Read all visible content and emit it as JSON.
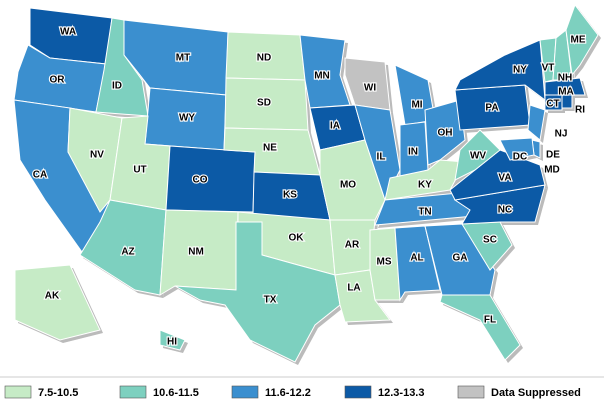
{
  "legend": [
    {
      "label": "7.5-10.5",
      "color": "#c6ebc6"
    },
    {
      "label": "10.6-11.5",
      "color": "#7dd0bf"
    },
    {
      "label": "11.6-12.2",
      "color": "#3b8fcf"
    },
    {
      "label": "12.3-13.3",
      "color": "#0c5aa6"
    },
    {
      "label": "Data Suppressed",
      "color": "#c2c2c2"
    }
  ],
  "states": [
    {
      "label": "WA",
      "class": 3
    },
    {
      "label": "OR",
      "class": 2
    },
    {
      "label": "CA",
      "class": 2
    },
    {
      "label": "NV",
      "class": 0
    },
    {
      "label": "ID",
      "class": 1
    },
    {
      "label": "MT",
      "class": 2
    },
    {
      "label": "WY",
      "class": 2
    },
    {
      "label": "UT",
      "class": 0
    },
    {
      "label": "AZ",
      "class": 1
    },
    {
      "label": "CO",
      "class": 3
    },
    {
      "label": "NM",
      "class": 0
    },
    {
      "label": "ND",
      "class": 0
    },
    {
      "label": "SD",
      "class": 0
    },
    {
      "label": "NE",
      "class": 0
    },
    {
      "label": "KS",
      "class": 3
    },
    {
      "label": "OK",
      "class": 0
    },
    {
      "label": "TX",
      "class": 1
    },
    {
      "label": "MN",
      "class": 2
    },
    {
      "label": "IA",
      "class": 3
    },
    {
      "label": "MO",
      "class": 0
    },
    {
      "label": "AR",
      "class": 0
    },
    {
      "label": "LA",
      "class": 0
    },
    {
      "label": "WI",
      "class": 4
    },
    {
      "label": "IL",
      "class": 2
    },
    {
      "label": "MI",
      "class": 2
    },
    {
      "label": "IN",
      "class": 2
    },
    {
      "label": "OH",
      "class": 2
    },
    {
      "label": "KY",
      "class": 0
    },
    {
      "label": "TN",
      "class": 2
    },
    {
      "label": "MS",
      "class": 0
    },
    {
      "label": "AL",
      "class": 2
    },
    {
      "label": "GA",
      "class": 2
    },
    {
      "label": "FL",
      "class": 1
    },
    {
      "label": "SC",
      "class": 1
    },
    {
      "label": "NC",
      "class": 3
    },
    {
      "label": "VA",
      "class": 3
    },
    {
      "label": "WV",
      "class": 1
    },
    {
      "label": "PA",
      "class": 3
    },
    {
      "label": "NY",
      "class": 3
    },
    {
      "label": "NJ",
      "class": 2
    },
    {
      "label": "DE",
      "class": 2
    },
    {
      "label": "MD",
      "class": 2
    },
    {
      "label": "DC",
      "class": 2
    },
    {
      "label": "VT",
      "class": 1
    },
    {
      "label": "NH",
      "class": 1
    },
    {
      "label": "ME",
      "class": 1
    },
    {
      "label": "MA",
      "class": 3
    },
    {
      "label": "CT",
      "class": 3
    },
    {
      "label": "RI",
      "class": 3
    },
    {
      "label": "AK",
      "class": 0
    },
    {
      "label": "HI",
      "class": 1
    }
  ]
}
